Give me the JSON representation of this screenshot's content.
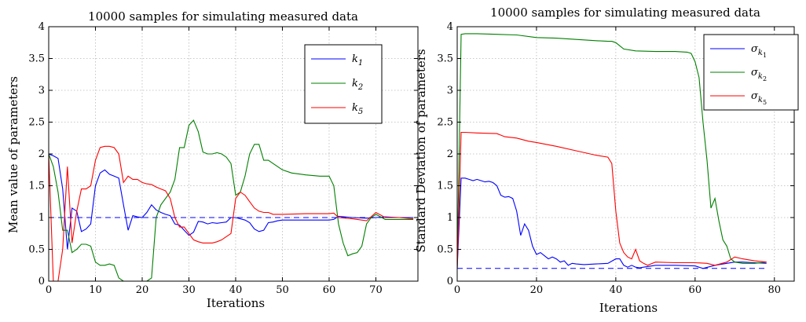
{
  "chart_data": [
    {
      "type": "line",
      "title": "10000 samples for simulating measured data",
      "xlabel": "Iterations",
      "ylabel": "Mean value of parameters",
      "xlim": [
        0,
        79
      ],
      "ylim": [
        0,
        4
      ],
      "xticks": [
        0,
        10,
        20,
        30,
        40,
        50,
        60,
        70
      ],
      "yticks": [
        0,
        0.5,
        1,
        1.5,
        2,
        2.5,
        3,
        3.5,
        4
      ],
      "xtick_labels": [
        "0",
        "10",
        "20",
        "30",
        "40",
        "50",
        "60",
        "70"
      ],
      "ytick_labels": [
        "0",
        "0.5",
        "1",
        "1.5",
        "2",
        "2.5",
        "3",
        "3.5",
        "4"
      ],
      "grid": true,
      "legend_position": "top-right",
      "reference_line": {
        "y": 1,
        "color": "#0000ff",
        "style": "dashed"
      },
      "series": [
        {
          "name": "k1",
          "color": "#0000ff",
          "x": [
            0,
            1,
            2,
            3,
            4,
            5,
            6,
            7,
            8,
            9,
            10,
            11,
            12,
            13,
            14,
            15,
            16,
            17,
            18,
            19,
            20,
            21,
            22,
            23,
            24,
            25,
            26,
            27,
            28,
            29,
            30,
            31,
            32,
            33,
            34,
            35,
            36,
            37,
            38,
            39,
            40,
            41,
            42,
            43,
            44,
            45,
            46,
            47,
            48,
            49,
            50,
            55,
            60,
            61,
            62,
            65,
            68,
            70,
            72,
            75,
            78
          ],
          "y": [
            2.0,
            1.97,
            1.93,
            1.45,
            0.5,
            1.15,
            1.1,
            0.78,
            0.82,
            0.9,
            1.5,
            1.7,
            1.75,
            1.68,
            1.65,
            1.62,
            1.2,
            0.8,
            1.03,
            1.01,
            1.0,
            1.08,
            1.2,
            1.12,
            1.08,
            1.05,
            1.03,
            0.9,
            0.88,
            0.8,
            0.72,
            0.77,
            0.94,
            0.93,
            0.9,
            0.92,
            0.91,
            0.92,
            0.93,
            1.0,
            1.0,
            0.98,
            0.96,
            0.92,
            0.82,
            0.78,
            0.8,
            0.92,
            0.93,
            0.95,
            0.96,
            0.96,
            0.96,
            0.97,
            1.02,
            1.0,
            0.99,
            1.0,
            1.01,
            1.0,
            1.0
          ]
        },
        {
          "name": "k2",
          "color": "#007f00",
          "x": [
            0,
            1,
            2,
            3,
            4,
            5,
            6,
            7,
            8,
            9,
            10,
            11,
            12,
            13,
            14,
            15,
            16,
            17,
            18,
            19,
            20,
            21,
            22,
            23,
            24,
            25,
            26,
            27,
            28,
            29,
            30,
            31,
            32,
            33,
            34,
            35,
            36,
            37,
            38,
            39,
            40,
            41,
            42,
            43,
            44,
            45,
            46,
            47,
            48,
            49,
            50,
            52,
            55,
            58,
            60,
            61,
            62,
            63,
            64,
            65,
            66,
            67,
            68,
            69,
            70,
            72,
            75,
            78
          ],
          "y": [
            2.0,
            1.8,
            1.4,
            0.8,
            0.8,
            0.45,
            0.5,
            0.58,
            0.58,
            0.55,
            0.3,
            0.25,
            0.25,
            0.27,
            0.25,
            0.05,
            0.0,
            0.0,
            0.0,
            0.0,
            0.0,
            0.0,
            0.05,
            1.0,
            1.2,
            1.3,
            1.4,
            1.6,
            2.1,
            2.1,
            2.45,
            2.53,
            2.35,
            2.03,
            2.0,
            2.0,
            2.02,
            2.0,
            1.95,
            1.85,
            1.35,
            1.4,
            1.65,
            2.0,
            2.15,
            2.15,
            1.9,
            1.9,
            1.85,
            1.8,
            1.75,
            1.7,
            1.67,
            1.65,
            1.65,
            1.5,
            0.9,
            0.6,
            0.4,
            0.43,
            0.45,
            0.55,
            0.9,
            1.0,
            1.05,
            0.97,
            0.97,
            0.97
          ]
        },
        {
          "name": "k5",
          "color": "#ff0000",
          "x": [
            0,
            1,
            2,
            3,
            4,
            5,
            6,
            7,
            8,
            9,
            10,
            11,
            12,
            13,
            14,
            15,
            16,
            17,
            18,
            19,
            20,
            21,
            22,
            23,
            24,
            25,
            26,
            27,
            28,
            29,
            30,
            31,
            32,
            33,
            34,
            35,
            36,
            37,
            38,
            39,
            40,
            41,
            42,
            43,
            44,
            45,
            46,
            47,
            48,
            49,
            50,
            55,
            60,
            61,
            62,
            65,
            68,
            70,
            72,
            75,
            78
          ],
          "y": [
            2.0,
            0.0,
            0.0,
            0.5,
            1.8,
            0.6,
            1.1,
            1.45,
            1.45,
            1.5,
            1.9,
            2.1,
            2.12,
            2.12,
            2.1,
            2.0,
            1.55,
            1.65,
            1.6,
            1.6,
            1.55,
            1.53,
            1.52,
            1.48,
            1.45,
            1.42,
            1.3,
            1.0,
            0.85,
            0.85,
            0.75,
            0.65,
            0.62,
            0.6,
            0.6,
            0.6,
            0.62,
            0.65,
            0.7,
            0.75,
            1.3,
            1.4,
            1.35,
            1.25,
            1.15,
            1.1,
            1.08,
            1.08,
            1.05,
            1.05,
            1.05,
            1.06,
            1.06,
            1.07,
            1.0,
            0.98,
            0.95,
            1.08,
            1.0,
            1.0,
            0.98
          ]
        }
      ],
      "legend_labels": [
        {
          "base": "k",
          "sub": "1"
        },
        {
          "base": "k",
          "sub": "2"
        },
        {
          "base": "k",
          "sub": "5"
        }
      ]
    },
    {
      "type": "line",
      "title": "10000 samples for simulating measured data",
      "xlabel": "Iterations",
      "ylabel": "Standard Deviation of parameters",
      "xlim": [
        0,
        85
      ],
      "ylim": [
        0,
        4
      ],
      "xticks": [
        0,
        20,
        40,
        60,
        80
      ],
      "yticks": [
        0,
        0.5,
        1,
        1.5,
        2,
        2.5,
        3,
        3.5,
        4
      ],
      "xtick_labels": [
        "0",
        "20",
        "40",
        "60",
        "80"
      ],
      "ytick_labels": [
        "0",
        "0.5",
        "1",
        "1.5",
        "2",
        "2.5",
        "3",
        "3.5",
        "4"
      ],
      "grid": true,
      "legend_position": "top-right",
      "reference_line": {
        "y": 0.2,
        "x_range": [
          0,
          78
        ],
        "color": "#0000ff",
        "style": "dashed"
      },
      "series": [
        {
          "name": "σk1",
          "color": "#0000ff",
          "x": [
            0,
            1,
            2,
            3,
            4,
            5,
            6,
            7,
            8,
            9,
            10,
            11,
            12,
            13,
            14,
            15,
            16,
            17,
            18,
            19,
            20,
            21,
            22,
            23,
            24,
            25,
            26,
            27,
            28,
            29,
            30,
            32,
            35,
            38,
            40,
            41,
            42,
            43,
            44,
            45,
            46,
            47,
            48,
            50,
            55,
            60,
            62,
            65,
            68,
            70,
            72,
            75,
            78
          ],
          "y": [
            0.2,
            1.62,
            1.62,
            1.6,
            1.58,
            1.6,
            1.58,
            1.56,
            1.57,
            1.55,
            1.5,
            1.35,
            1.32,
            1.33,
            1.3,
            1.1,
            0.72,
            0.9,
            0.8,
            0.55,
            0.42,
            0.45,
            0.4,
            0.35,
            0.38,
            0.35,
            0.3,
            0.32,
            0.25,
            0.28,
            0.27,
            0.26,
            0.27,
            0.28,
            0.35,
            0.35,
            0.25,
            0.22,
            0.25,
            0.22,
            0.21,
            0.22,
            0.23,
            0.25,
            0.25,
            0.24,
            0.2,
            0.25,
            0.28,
            0.3,
            0.3,
            0.29,
            0.28
          ]
        },
        {
          "name": "σk2",
          "color": "#007f00",
          "x": [
            0,
            1,
            2,
            5,
            10,
            15,
            20,
            25,
            30,
            35,
            38,
            39,
            40,
            42,
            45,
            50,
            55,
            58,
            59,
            60,
            61,
            62,
            63,
            64,
            65,
            66,
            67,
            68,
            69,
            70,
            72,
            75,
            78
          ],
          "y": [
            0.2,
            3.88,
            3.89,
            3.89,
            3.88,
            3.87,
            3.83,
            3.82,
            3.8,
            3.78,
            3.77,
            3.77,
            3.75,
            3.65,
            3.62,
            3.61,
            3.61,
            3.6,
            3.58,
            3.45,
            3.2,
            2.5,
            1.9,
            1.15,
            1.3,
            0.95,
            0.65,
            0.55,
            0.35,
            0.3,
            0.28,
            0.28,
            0.3
          ]
        },
        {
          "name": "σk5",
          "color": "#ff0000",
          "x": [
            0,
            1,
            2,
            5,
            10,
            12,
            15,
            18,
            20,
            25,
            30,
            35,
            38,
            39,
            40,
            41,
            42,
            43,
            44,
            45,
            46,
            47,
            48,
            50,
            55,
            60,
            63,
            65,
            68,
            70,
            72,
            75,
            78
          ],
          "y": [
            0.2,
            2.34,
            2.34,
            2.33,
            2.32,
            2.27,
            2.25,
            2.2,
            2.18,
            2.12,
            2.05,
            1.98,
            1.95,
            1.85,
            1.1,
            0.6,
            0.45,
            0.38,
            0.35,
            0.5,
            0.32,
            0.28,
            0.25,
            0.3,
            0.29,
            0.29,
            0.28,
            0.25,
            0.3,
            0.38,
            0.35,
            0.32,
            0.3
          ]
        }
      ],
      "legend_labels": [
        {
          "base": "σ",
          "sub": "k",
          "subsub": "1"
        },
        {
          "base": "σ",
          "sub": "k",
          "subsub": "2"
        },
        {
          "base": "σ",
          "sub": "k",
          "subsub": "5"
        }
      ]
    }
  ]
}
